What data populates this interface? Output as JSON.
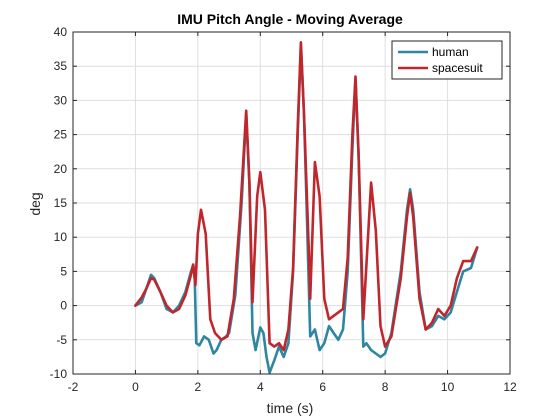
{
  "chart_data": {
    "type": "line",
    "title": "IMU Pitch Angle - Moving Average",
    "xlabel": "time (s)",
    "ylabel": "deg",
    "xlim": [
      -2,
      12
    ],
    "ylim": [
      -10,
      40
    ],
    "xticks": [
      "-2",
      "0",
      "2",
      "4",
      "6",
      "8",
      "10",
      "12"
    ],
    "yticks": [
      "-10",
      "-5",
      "0",
      "5",
      "10",
      "15",
      "20",
      "25",
      "30",
      "35",
      "40"
    ],
    "grid": true,
    "legend_position": "top-right",
    "series": [
      {
        "name": "human",
        "color": "#2e86a0",
        "points": [
          [
            0.0,
            0.0
          ],
          [
            0.2,
            0.5
          ],
          [
            0.35,
            2.5
          ],
          [
            0.5,
            4.5
          ],
          [
            0.6,
            4.0
          ],
          [
            0.8,
            2.0
          ],
          [
            1.0,
            -0.5
          ],
          [
            1.2,
            -1.0
          ],
          [
            1.4,
            0.0
          ],
          [
            1.6,
            2.0
          ],
          [
            1.75,
            4.5
          ],
          [
            1.85,
            6.0
          ],
          [
            1.9,
            4.0
          ],
          [
            1.95,
            -5.5
          ],
          [
            2.05,
            -5.8
          ],
          [
            2.2,
            -4.5
          ],
          [
            2.35,
            -5.0
          ],
          [
            2.5,
            -7.0
          ],
          [
            2.6,
            -6.5
          ],
          [
            2.75,
            -5.0
          ],
          [
            2.9,
            -4.5
          ],
          [
            3.0,
            -4.0
          ],
          [
            3.2,
            1.5
          ],
          [
            3.4,
            15.0
          ],
          [
            3.55,
            28.0
          ],
          [
            3.65,
            18.0
          ],
          [
            3.75,
            -4.0
          ],
          [
            3.85,
            -6.5
          ],
          [
            4.0,
            -3.2
          ],
          [
            4.1,
            -4.0
          ],
          [
            4.2,
            -7.5
          ],
          [
            4.3,
            -9.8
          ],
          [
            4.45,
            -8.0
          ],
          [
            4.6,
            -6.0
          ],
          [
            4.75,
            -7.5
          ],
          [
            4.9,
            -5.5
          ],
          [
            5.05,
            5.0
          ],
          [
            5.2,
            25.0
          ],
          [
            5.3,
            38.0
          ],
          [
            5.4,
            28.0
          ],
          [
            5.5,
            12.0
          ],
          [
            5.6,
            -4.5
          ],
          [
            5.75,
            -3.5
          ],
          [
            5.9,
            -6.5
          ],
          [
            6.05,
            -5.5
          ],
          [
            6.2,
            -3.0
          ],
          [
            6.35,
            -4.0
          ],
          [
            6.5,
            -5.0
          ],
          [
            6.65,
            -3.5
          ],
          [
            6.8,
            5.0
          ],
          [
            6.95,
            23.0
          ],
          [
            7.05,
            33.0
          ],
          [
            7.15,
            22.0
          ],
          [
            7.3,
            -6.0
          ],
          [
            7.4,
            -5.5
          ],
          [
            7.55,
            -6.5
          ],
          [
            7.7,
            -7.0
          ],
          [
            7.85,
            -7.5
          ],
          [
            8.0,
            -7.0
          ],
          [
            8.2,
            -4.0
          ],
          [
            8.5,
            5.0
          ],
          [
            8.7,
            14.0
          ],
          [
            8.8,
            17.0
          ],
          [
            8.9,
            14.0
          ],
          [
            9.1,
            2.0
          ],
          [
            9.3,
            -3.5
          ],
          [
            9.5,
            -3.0
          ],
          [
            9.7,
            -1.5
          ],
          [
            9.9,
            -2.0
          ],
          [
            10.1,
            -1.0
          ],
          [
            10.3,
            2.0
          ],
          [
            10.5,
            5.0
          ],
          [
            10.75,
            5.5
          ],
          [
            10.95,
            8.5
          ]
        ]
      },
      {
        "name": "spacesuit",
        "color": "#c0272d",
        "points": [
          [
            0.0,
            0.0
          ],
          [
            0.2,
            1.2
          ],
          [
            0.35,
            2.5
          ],
          [
            0.5,
            4.0
          ],
          [
            0.6,
            3.8
          ],
          [
            0.8,
            2.0
          ],
          [
            1.0,
            0.0
          ],
          [
            1.2,
            -1.0
          ],
          [
            1.4,
            -0.5
          ],
          [
            1.6,
            1.5
          ],
          [
            1.75,
            4.0
          ],
          [
            1.85,
            6.0
          ],
          [
            1.92,
            3.0
          ],
          [
            2.0,
            10.5
          ],
          [
            2.1,
            14.0
          ],
          [
            2.25,
            10.5
          ],
          [
            2.4,
            -2.0
          ],
          [
            2.55,
            -4.0
          ],
          [
            2.75,
            -5.0
          ],
          [
            2.95,
            -4.5
          ],
          [
            3.15,
            1.0
          ],
          [
            3.35,
            13.0
          ],
          [
            3.55,
            28.5
          ],
          [
            3.65,
            18.0
          ],
          [
            3.75,
            0.5
          ],
          [
            3.9,
            16.0
          ],
          [
            4.0,
            19.5
          ],
          [
            4.15,
            14.0
          ],
          [
            4.3,
            -5.5
          ],
          [
            4.45,
            -6.0
          ],
          [
            4.6,
            -5.5
          ],
          [
            4.75,
            -6.5
          ],
          [
            4.9,
            -3.5
          ],
          [
            5.05,
            5.5
          ],
          [
            5.2,
            26.0
          ],
          [
            5.3,
            38.5
          ],
          [
            5.4,
            28.0
          ],
          [
            5.55,
            8.5
          ],
          [
            5.6,
            1.0
          ],
          [
            5.75,
            21.0
          ],
          [
            5.9,
            16.0
          ],
          [
            6.05,
            1.0
          ],
          [
            6.2,
            -2.0
          ],
          [
            6.35,
            -1.5
          ],
          [
            6.5,
            -1.0
          ],
          [
            6.65,
            -0.5
          ],
          [
            6.8,
            7.0
          ],
          [
            6.95,
            25.0
          ],
          [
            7.05,
            33.5
          ],
          [
            7.15,
            22.0
          ],
          [
            7.3,
            -2.0
          ],
          [
            7.45,
            10.0
          ],
          [
            7.55,
            18.0
          ],
          [
            7.7,
            11.0
          ],
          [
            7.85,
            -3.0
          ],
          [
            8.0,
            -6.0
          ],
          [
            8.2,
            -4.5
          ],
          [
            8.5,
            4.0
          ],
          [
            8.7,
            13.0
          ],
          [
            8.8,
            16.5
          ],
          [
            8.9,
            13.0
          ],
          [
            9.1,
            1.0
          ],
          [
            9.3,
            -3.5
          ],
          [
            9.5,
            -2.5
          ],
          [
            9.7,
            -0.5
          ],
          [
            9.9,
            -1.5
          ],
          [
            10.1,
            0.0
          ],
          [
            10.3,
            4.0
          ],
          [
            10.5,
            6.5
          ],
          [
            10.75,
            6.5
          ],
          [
            10.95,
            8.5
          ]
        ]
      }
    ]
  }
}
